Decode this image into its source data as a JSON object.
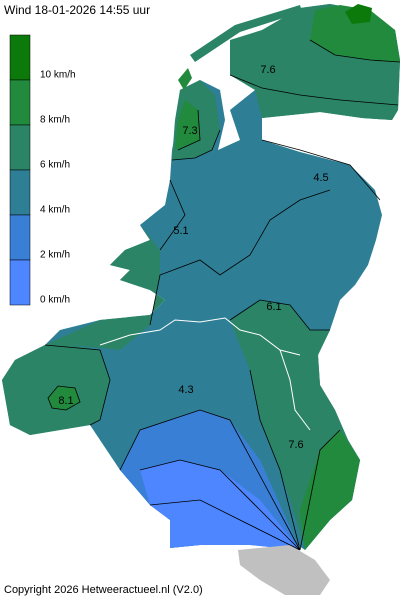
{
  "header": {
    "title": "Wind 18-01-2026  14:55 uur"
  },
  "legend": {
    "items": [
      {
        "label": "10 km/h",
        "color": "#0b7a0b"
      },
      {
        "label": "8 km/h",
        "color": "#228a3c"
      },
      {
        "label": "6 km/h",
        "color": "#2b8466"
      },
      {
        "label": "4 km/h",
        "color": "#2e7f96"
      },
      {
        "label": "2 km/h",
        "color": "#3a7fd6"
      },
      {
        "label": "0 km/h",
        "color": "#4d86ff"
      }
    ]
  },
  "map": {
    "labels": [
      {
        "text": "7.6"
      },
      {
        "text": "7.3"
      },
      {
        "text": "4.5"
      },
      {
        "text": "5.1"
      },
      {
        "text": "6.1"
      },
      {
        "text": "4.3"
      },
      {
        "text": "8.1"
      },
      {
        "text": "7.6"
      }
    ]
  },
  "footer": {
    "copyright": "Copyright 2026 Hetweeractueel.nl (V2.0)"
  }
}
